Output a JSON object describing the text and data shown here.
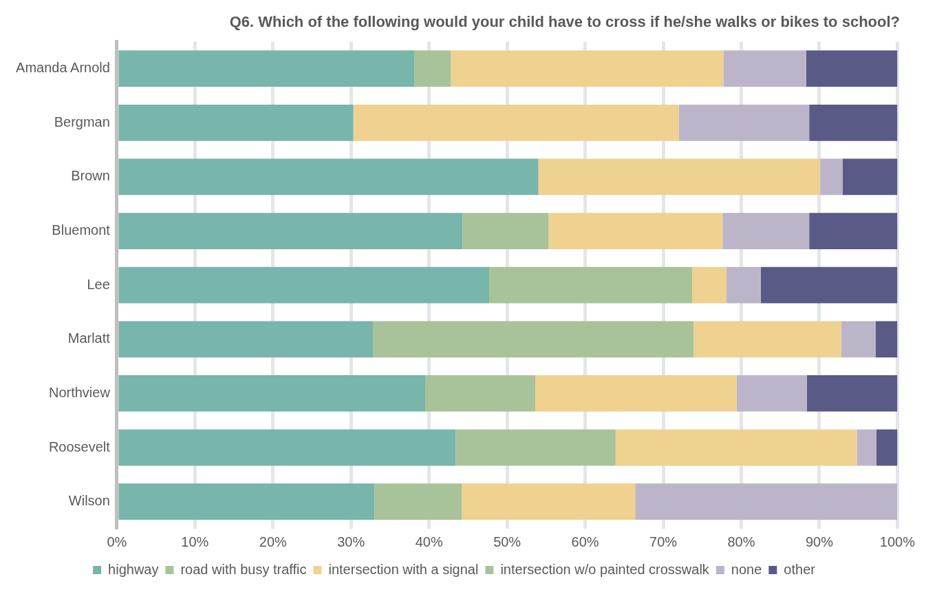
{
  "chart_data": {
    "type": "bar",
    "orientation": "horizontal",
    "stacked": true,
    "title": "Q6. Which of the following would your child have to cross if he/she walks or bikes to school?",
    "categories": [
      "Amanda Arnold",
      "Bergman",
      "Brown",
      "Bluemont",
      "Lee",
      "Marlatt",
      "Northview",
      "Roosevelt",
      "Wilson"
    ],
    "series": [
      {
        "name": "highway",
        "color": "#78b5ab",
        "values": [
          38.1,
          30.3,
          54.0,
          44.3,
          47.7,
          32.8,
          39.5,
          43.4,
          33.0
        ]
      },
      {
        "name": "road with busy traffic",
        "color": "#a8c39a",
        "values": [
          4.7,
          0,
          0,
          11.0,
          26.0,
          41.1,
          14.1,
          20.5,
          11.2
        ]
      },
      {
        "name": "intersection with a signal",
        "color": "#efd190",
        "values": [
          34.9,
          41.7,
          36.1,
          22.3,
          4.4,
          18.9,
          25.8,
          30.9,
          22.2
        ]
      },
      {
        "name": "intersection w/o painted crosswalk",
        "color": "#a6c49c",
        "values": [
          0,
          0,
          0,
          0,
          0,
          0,
          0,
          0,
          0
        ]
      },
      {
        "name": "none",
        "color": "#bcb5c9",
        "values": [
          10.6,
          16.7,
          2.9,
          11.1,
          4.4,
          4.4,
          9.0,
          2.5,
          33.6
        ]
      },
      {
        "name": "other",
        "color": "#5a5a87",
        "values": [
          11.7,
          11.3,
          7.0,
          11.3,
          17.5,
          2.8,
          11.6,
          2.7,
          0
        ]
      }
    ],
    "xlim": [
      0,
      100
    ],
    "xticks": [
      {
        "value": 0,
        "label": "0%"
      },
      {
        "value": 10,
        "label": "10%"
      },
      {
        "value": 20,
        "label": "20%"
      },
      {
        "value": 30,
        "label": "30%"
      },
      {
        "value": 40,
        "label": "40%"
      },
      {
        "value": 50,
        "label": "50%"
      },
      {
        "value": 60,
        "label": "60%"
      },
      {
        "value": 70,
        "label": "70%"
      },
      {
        "value": 80,
        "label": "80%"
      },
      {
        "value": 90,
        "label": "90%"
      },
      {
        "value": 100,
        "label": "100%"
      }
    ],
    "grid": "x",
    "legend": "bottom"
  }
}
